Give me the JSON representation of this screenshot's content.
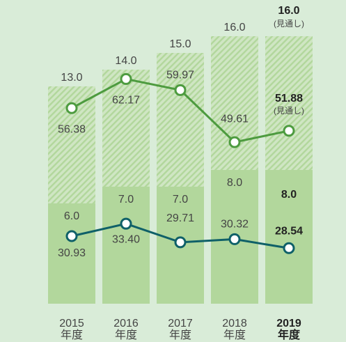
{
  "chart_data": {
    "type": "bar-line",
    "categories": [
      "2015\n年度",
      "2016\n年度",
      "2017\n年度",
      "2018\n年度",
      "2019\n年度"
    ],
    "ylim": [
      0,
      17
    ],
    "y2lim": [
      17.5,
      74
    ],
    "series": [
      {
        "name": "total",
        "type": "bar",
        "pattern": "hatch",
        "color": "#b2d79c",
        "values": [
          13,
          14,
          15,
          16,
          16
        ],
        "value_labels": [
          "13.0",
          "14.0",
          "15.0",
          "16.0",
          "16.0"
        ]
      },
      {
        "name": "base",
        "type": "bar",
        "color": "#b2d79c",
        "values": [
          6,
          7,
          7,
          8,
          8
        ],
        "value_labels": [
          "6.0",
          "7.0",
          "7.0",
          "8.0",
          "8.0"
        ]
      },
      {
        "name": "line-a",
        "type": "line",
        "axis": "y2",
        "color": "#4d9b3f",
        "values": [
          56.38,
          62.17,
          59.97,
          49.61,
          51.88
        ]
      },
      {
        "name": "line-b",
        "type": "line",
        "axis": "y2",
        "color": "#0f6068",
        "values": [
          30.93,
          33.4,
          29.71,
          30.32,
          28.54
        ],
        "value_labels": [
          "30.93",
          "33.40",
          "29.71",
          "30.32",
          "28.54"
        ]
      }
    ],
    "annotations": [
      "(見通し)",
      "(見通し)"
    ]
  }
}
